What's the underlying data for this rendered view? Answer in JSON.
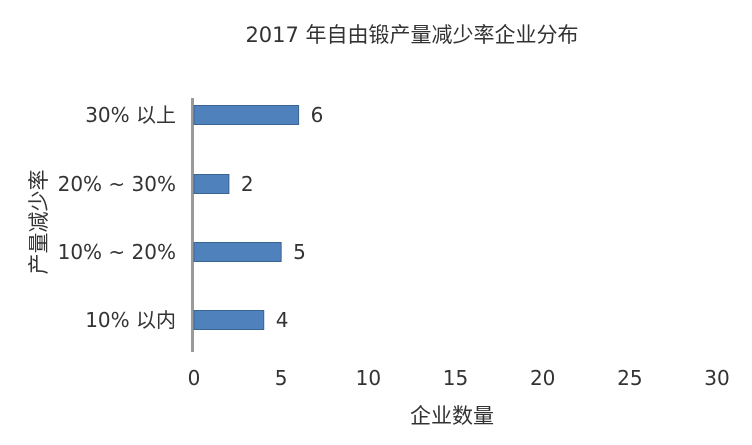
{
  "chart_data": {
    "type": "bar",
    "orientation": "horizontal",
    "title": "2017 年自由锻产量减少率企业分布",
    "xlabel": "企业数量",
    "ylabel": "产量减少率",
    "categories": [
      "30% 以上",
      "20% ~ 30%",
      "10% ~ 20%",
      "10% 以内"
    ],
    "values": [
      6,
      2,
      5,
      4
    ],
    "xlim": [
      0,
      30
    ],
    "xticks": [
      0,
      5,
      10,
      15,
      20,
      25,
      30
    ],
    "grid": false,
    "legend": "none",
    "bar_color": "#4F81BD",
    "bar_edge_color": "#3A6593",
    "axis_color": "#9A9A9A"
  }
}
